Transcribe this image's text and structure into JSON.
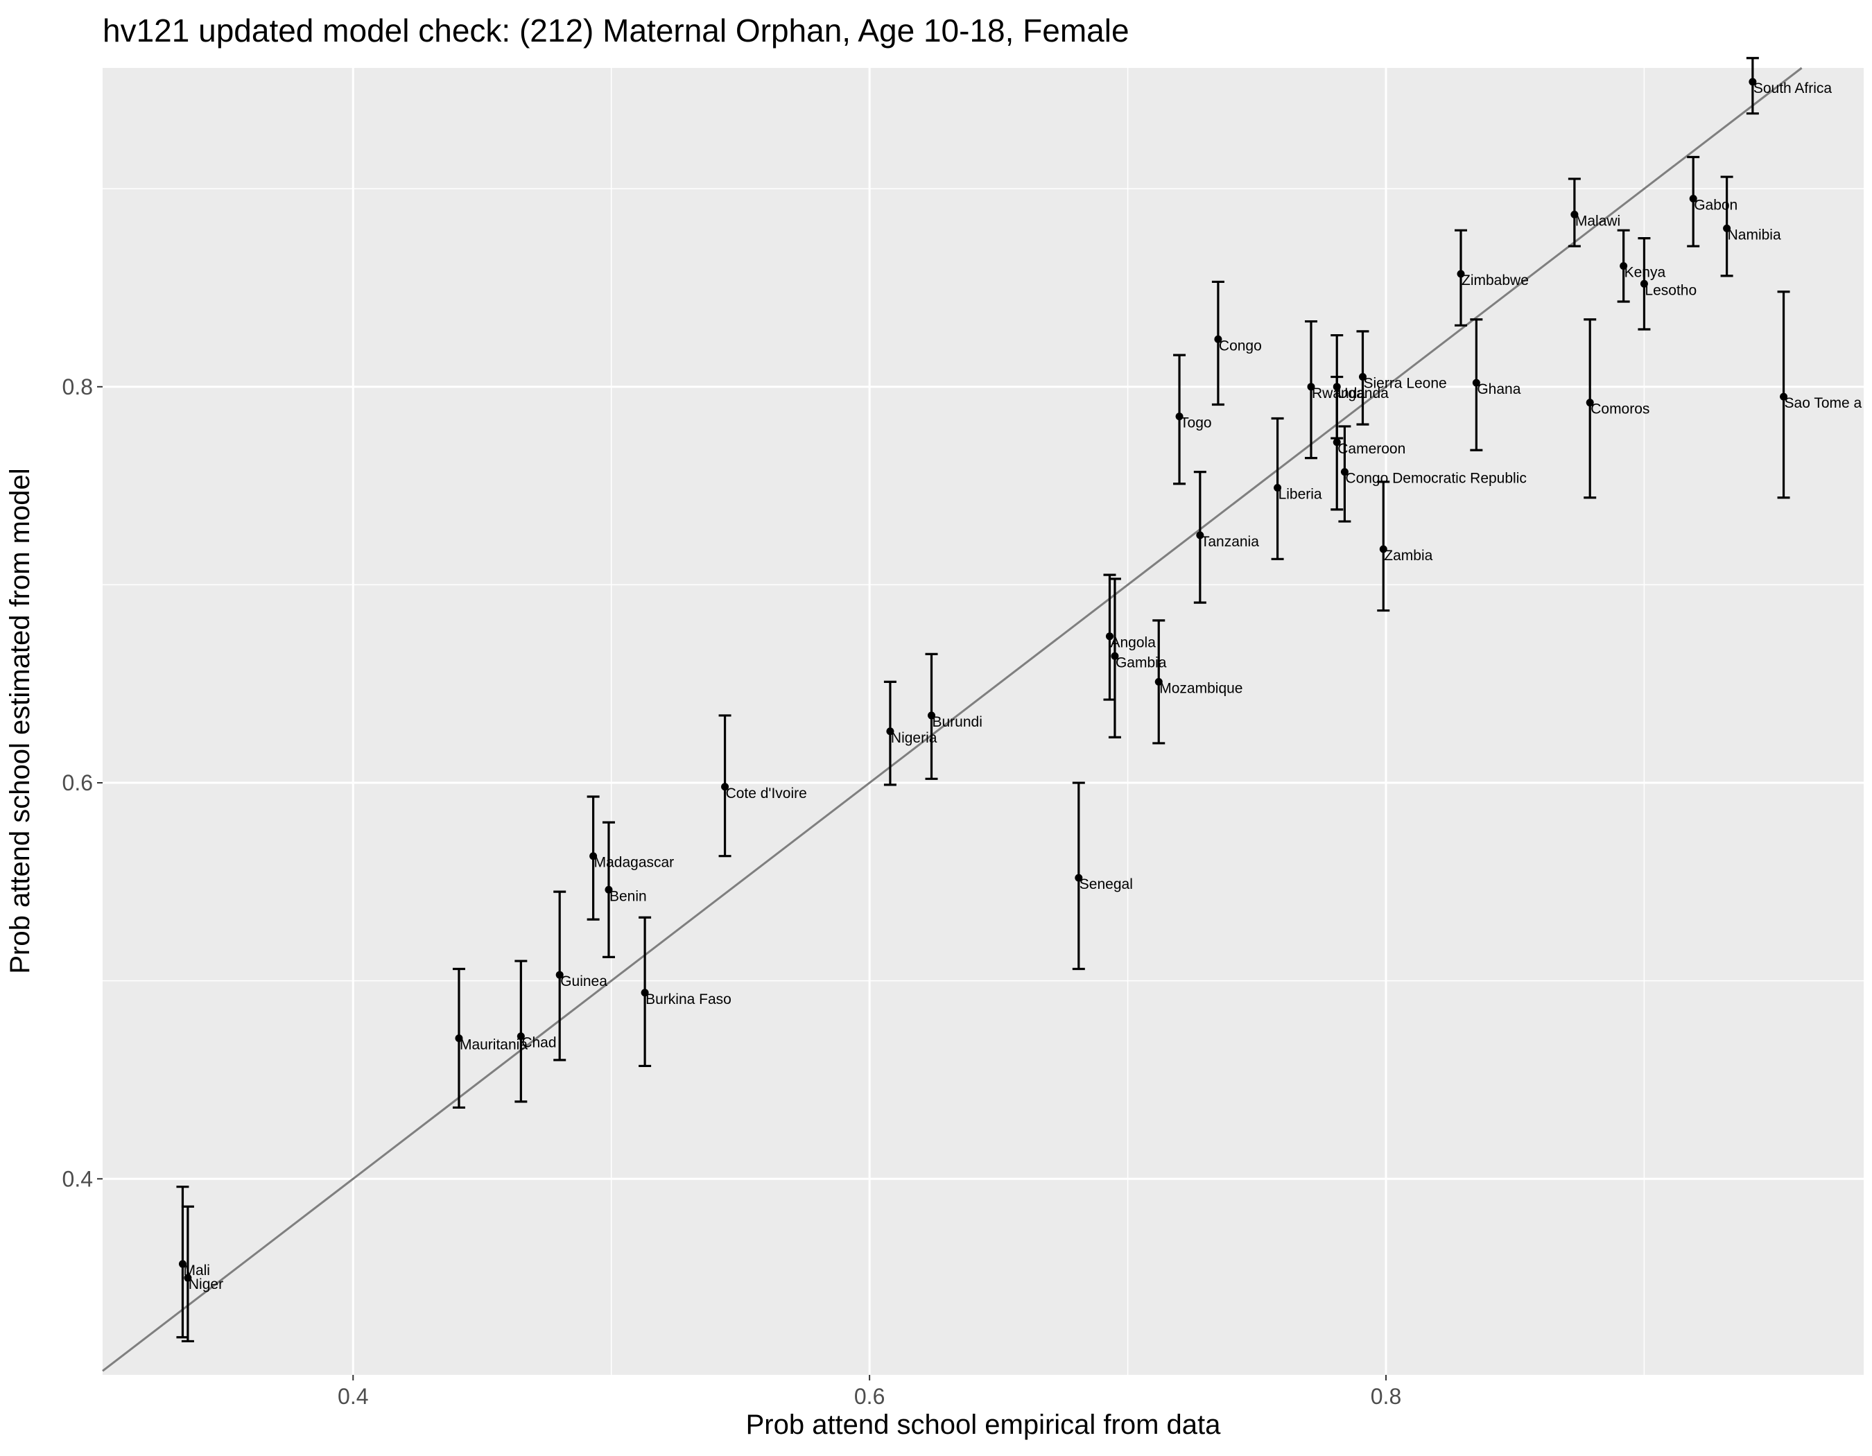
{
  "chart_data": {
    "type": "scatter",
    "title": "hv121 updated model check: (212) Maternal Orphan, Age 10-18, Female",
    "xlabel": "Prob attend school empirical from data",
    "ylabel": "Prob attend school estimated from model",
    "xlim": [
      0.303,
      0.985
    ],
    "ylim": [
      0.301,
      0.961
    ],
    "x_ticks": [
      0.4,
      0.6,
      0.8
    ],
    "y_ticks": [
      0.4,
      0.6,
      0.8
    ],
    "x_tick_labels": [
      "0.4",
      "0.6",
      "0.8"
    ],
    "y_tick_labels": [
      "0.4",
      "0.6",
      "0.8"
    ],
    "grid": true,
    "reference_line": "y = x",
    "colors": {
      "panel_background": "#ebebeb",
      "grid": "#ffffff",
      "points": "#000000",
      "reference_line": "#7f7f7f"
    },
    "points": [
      {
        "label": "Mali",
        "x": 0.334,
        "y_est": 0.357,
        "y_low": 0.32,
        "y_high": 0.396
      },
      {
        "label": "Niger",
        "x": 0.336,
        "y_est": 0.35,
        "y_low": 0.318,
        "y_high": 0.386
      },
      {
        "label": "Mauritania",
        "x": 0.441,
        "y_est": 0.471,
        "y_low": 0.436,
        "y_high": 0.506
      },
      {
        "label": "Chad",
        "x": 0.465,
        "y_est": 0.472,
        "y_low": 0.439,
        "y_high": 0.51
      },
      {
        "label": "Guinea",
        "x": 0.48,
        "y_est": 0.503,
        "y_low": 0.46,
        "y_high": 0.545
      },
      {
        "label": "Madagascar",
        "x": 0.493,
        "y_est": 0.563,
        "y_low": 0.531,
        "y_high": 0.593
      },
      {
        "label": "Benin",
        "x": 0.499,
        "y_est": 0.546,
        "y_low": 0.512,
        "y_high": 0.58
      },
      {
        "label": "Burkina Faso",
        "x": 0.513,
        "y_est": 0.494,
        "y_low": 0.457,
        "y_high": 0.532
      },
      {
        "label": "Cote d'Ivoire",
        "x": 0.544,
        "y_est": 0.598,
        "y_low": 0.563,
        "y_high": 0.634
      },
      {
        "label": "Nigeria",
        "x": 0.608,
        "y_est": 0.626,
        "y_low": 0.599,
        "y_high": 0.651
      },
      {
        "label": "Burundi",
        "x": 0.624,
        "y_est": 0.634,
        "y_low": 0.602,
        "y_high": 0.665
      },
      {
        "label": "Senegal",
        "x": 0.681,
        "y_est": 0.552,
        "y_low": 0.506,
        "y_high": 0.6
      },
      {
        "label": "Angola",
        "x": 0.693,
        "y_est": 0.674,
        "y_low": 0.642,
        "y_high": 0.705
      },
      {
        "label": "Gambia",
        "x": 0.695,
        "y_est": 0.664,
        "y_low": 0.623,
        "y_high": 0.703
      },
      {
        "label": "Mozambique",
        "x": 0.712,
        "y_est": 0.651,
        "y_low": 0.62,
        "y_high": 0.682
      },
      {
        "label": "Togo",
        "x": 0.72,
        "y_est": 0.785,
        "y_low": 0.751,
        "y_high": 0.816
      },
      {
        "label": "Tanzania",
        "x": 0.728,
        "y_est": 0.725,
        "y_low": 0.691,
        "y_high": 0.757
      },
      {
        "label": "Congo",
        "x": 0.735,
        "y_est": 0.824,
        "y_low": 0.791,
        "y_high": 0.853
      },
      {
        "label": "Liberia",
        "x": 0.758,
        "y_est": 0.749,
        "y_low": 0.713,
        "y_high": 0.784
      },
      {
        "label": "Rwanda",
        "x": 0.771,
        "y_est": 0.8,
        "y_low": 0.764,
        "y_high": 0.833
      },
      {
        "label": "Uganda",
        "x": 0.781,
        "y_est": 0.8,
        "y_low": 0.774,
        "y_high": 0.826
      },
      {
        "label": "Cameroon",
        "x": 0.781,
        "y_est": 0.772,
        "y_low": 0.738,
        "y_high": 0.805
      },
      {
        "label": "Congo Democratic Republic",
        "x": 0.784,
        "y_est": 0.757,
        "y_low": 0.732,
        "y_high": 0.78
      },
      {
        "label": "Sierra Leone",
        "x": 0.791,
        "y_est": 0.805,
        "y_low": 0.781,
        "y_high": 0.828
      },
      {
        "label": "Zambia",
        "x": 0.799,
        "y_est": 0.718,
        "y_low": 0.687,
        "y_high": 0.752
      },
      {
        "label": "Zimbabwe",
        "x": 0.829,
        "y_est": 0.857,
        "y_low": 0.831,
        "y_high": 0.879
      },
      {
        "label": "Ghana",
        "x": 0.835,
        "y_est": 0.802,
        "y_low": 0.768,
        "y_high": 0.834
      },
      {
        "label": "Malawi",
        "x": 0.873,
        "y_est": 0.887,
        "y_low": 0.871,
        "y_high": 0.905
      },
      {
        "label": "Comoros",
        "x": 0.879,
        "y_est": 0.792,
        "y_low": 0.744,
        "y_high": 0.834
      },
      {
        "label": "Kenya",
        "x": 0.892,
        "y_est": 0.861,
        "y_low": 0.843,
        "y_high": 0.879
      },
      {
        "label": "Lesotho",
        "x": 0.9,
        "y_est": 0.852,
        "y_low": 0.829,
        "y_high": 0.875
      },
      {
        "label": "Gabon",
        "x": 0.919,
        "y_est": 0.895,
        "y_low": 0.871,
        "y_high": 0.916
      },
      {
        "label": "Namibia",
        "x": 0.932,
        "y_est": 0.88,
        "y_low": 0.856,
        "y_high": 0.906
      },
      {
        "label": "South Africa",
        "x": 0.942,
        "y_est": 0.954,
        "y_low": 0.938,
        "y_high": 0.966
      },
      {
        "label": "Sao Tome a",
        "x": 0.954,
        "y_est": 0.795,
        "y_low": 0.744,
        "y_high": 0.848
      }
    ]
  }
}
